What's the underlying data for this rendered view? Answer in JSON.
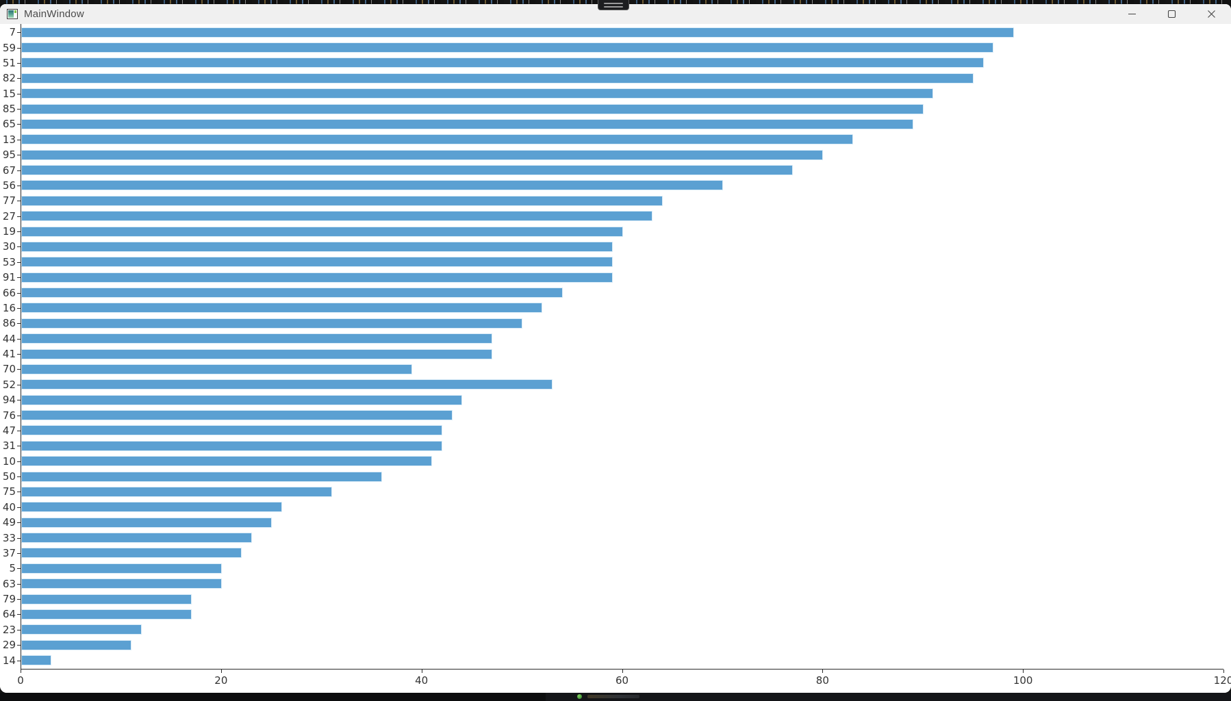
{
  "window": {
    "title": "MainWindow",
    "app_icon": "app-window-icon",
    "controls": [
      {
        "name": "minimize",
        "icon": "minimize-icon"
      },
      {
        "name": "maximize",
        "icon": "maximize-icon"
      },
      {
        "name": "close",
        "icon": "close-icon"
      }
    ]
  },
  "chart_data": {
    "type": "bar",
    "orientation": "horizontal",
    "title": "",
    "xlabel": "",
    "ylabel": "",
    "grid": false,
    "legend": null,
    "xlim": [
      0,
      120
    ],
    "x_ticks": [
      0,
      20,
      40,
      60,
      80,
      100,
      120
    ],
    "bar_color": "#5ba0d2",
    "categories": [
      "7",
      "59",
      "51",
      "82",
      "15",
      "85",
      "65",
      "13",
      "95",
      "67",
      "56",
      "77",
      "27",
      "19",
      "30",
      "53",
      "91",
      "66",
      "16",
      "86",
      "44",
      "41",
      "70",
      "52",
      "94",
      "76",
      "47",
      "31",
      "10",
      "50",
      "75",
      "40",
      "49",
      "33",
      "37",
      "5",
      "63",
      "79",
      "64",
      "23",
      "29",
      "14"
    ],
    "values": [
      99,
      97,
      96,
      95,
      91,
      90,
      89,
      83,
      80,
      77,
      70,
      64,
      63,
      60,
      59,
      59,
      59,
      54,
      52,
      50,
      47,
      47,
      39,
      53,
      44,
      43,
      42,
      42,
      41,
      36,
      31,
      26,
      25,
      23,
      22,
      20,
      20,
      17,
      17,
      12,
      11,
      3
    ]
  },
  "desktop": {
    "top_edge": "background-window-edge",
    "snap_handle": "window-grip-handle",
    "taskbar_icon": "green-app-dot-icon"
  }
}
